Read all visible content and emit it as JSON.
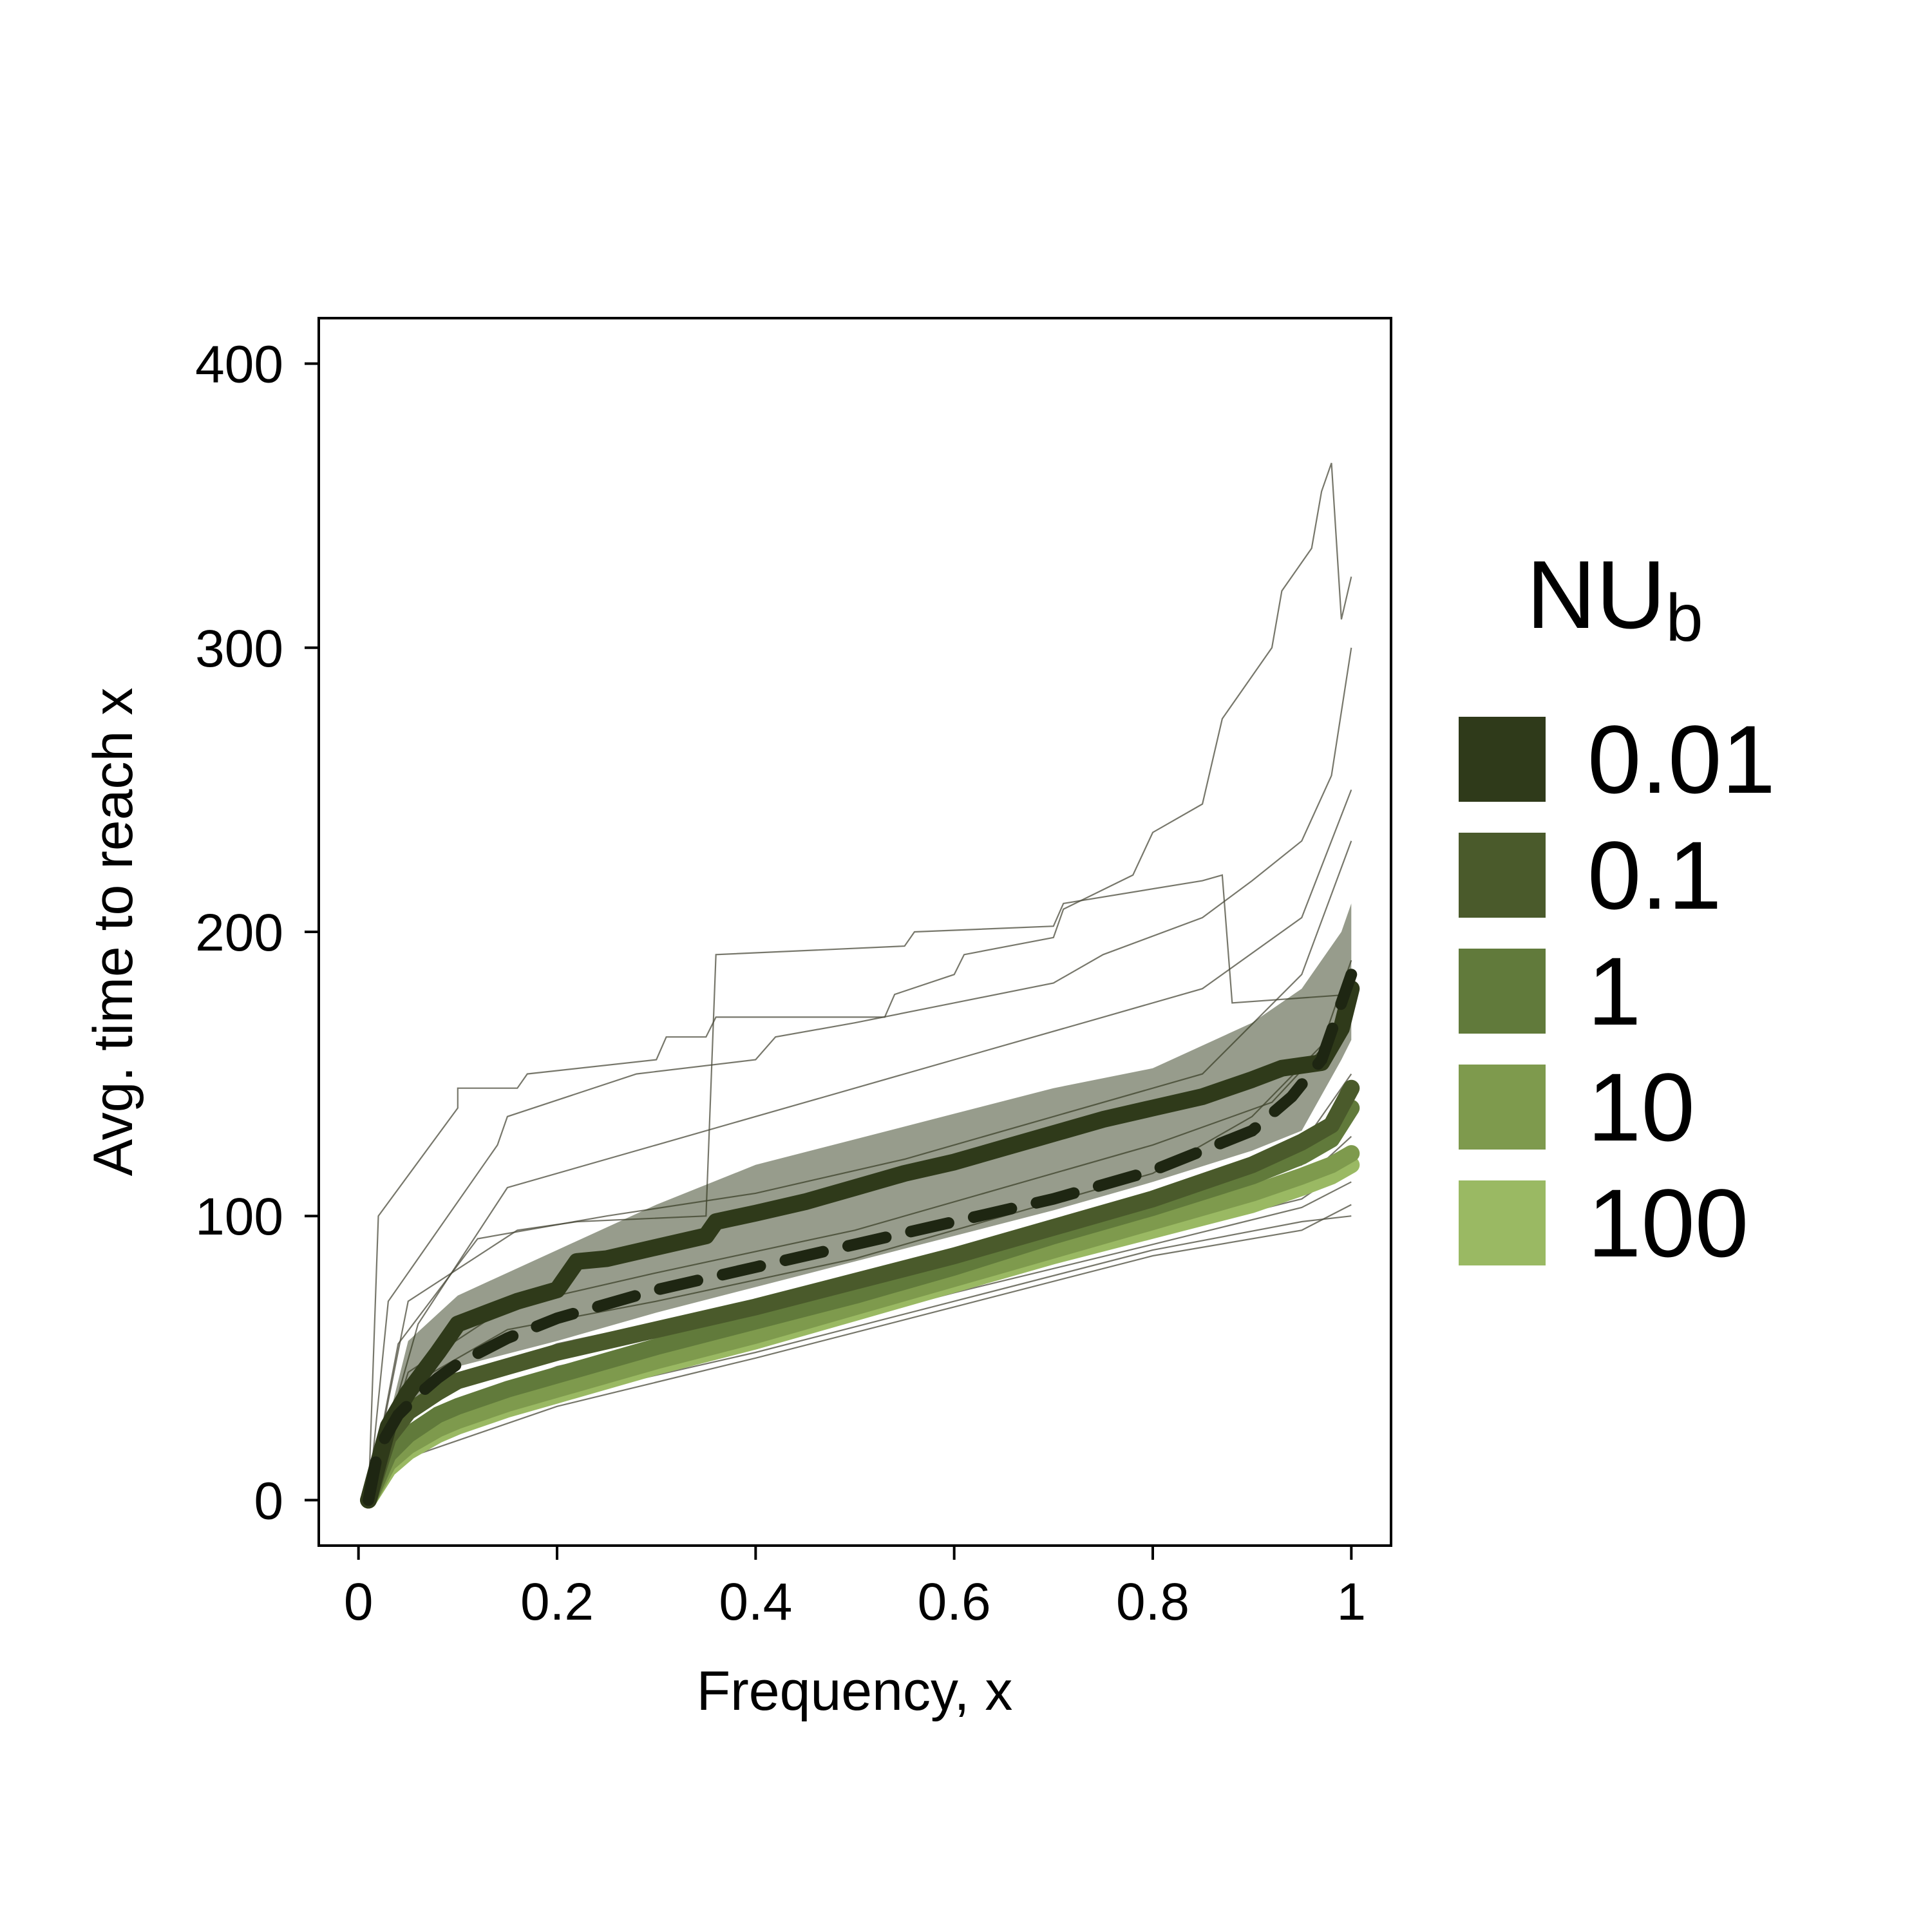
{
  "chart_data": {
    "type": "line",
    "xlabel": "Frequency, x",
    "ylabel": "Avg. time to reach x",
    "xlim": [
      -0.04,
      1.04
    ],
    "ylim": [
      -16,
      416
    ],
    "x_ticks": [
      "0",
      "0.2",
      "0.4",
      "0.6",
      "0.8",
      "1"
    ],
    "x_tick_values": [
      0,
      0.2,
      0.4,
      0.6,
      0.8,
      1
    ],
    "y_ticks": [
      "0",
      "100",
      "200",
      "300",
      "400"
    ],
    "y_tick_values": [
      0,
      100,
      200,
      300,
      400
    ],
    "grid": false,
    "legend": {
      "title_main": "NU",
      "title_sub": "b",
      "placement": "right",
      "entries": [
        "0.01",
        "0.1",
        "1",
        "10",
        "100"
      ]
    },
    "band": {
      "series": "0.01",
      "color": "#2f3a1a",
      "opacity": 0.5,
      "x": [
        0.01,
        0.05,
        0.1,
        0.2,
        0.3,
        0.4,
        0.5,
        0.6,
        0.7,
        0.8,
        0.9,
        0.95,
        0.99,
        1.0
      ],
      "lower": [
        0,
        30,
        47,
        56,
        66,
        75,
        84,
        93,
        102,
        112,
        123,
        130,
        155,
        162
      ],
      "upper": [
        0,
        56,
        72,
        88,
        104,
        118,
        127,
        136,
        145,
        152,
        168,
        180,
        200,
        210
      ]
    },
    "series": [
      {
        "name": "0.01",
        "color": "#2f3a1a",
        "x": [
          0.01,
          0.03,
          0.05,
          0.08,
          0.1,
          0.13,
          0.16,
          0.2,
          0.22,
          0.25,
          0.3,
          0.35,
          0.36,
          0.4,
          0.45,
          0.5,
          0.55,
          0.6,
          0.65,
          0.7,
          0.75,
          0.8,
          0.85,
          0.9,
          0.93,
          0.95,
          0.97,
          0.99,
          1.0
        ],
        "y": [
          0,
          26,
          38,
          52,
          62,
          66,
          70,
          74,
          84,
          85,
          89,
          93,
          98,
          101,
          105,
          110,
          115,
          119,
          124,
          129,
          134,
          138,
          142,
          148,
          152,
          153,
          154,
          166,
          180
        ]
      },
      {
        "name": "0.1",
        "color": "#4a5a2b",
        "x": [
          0.01,
          0.03,
          0.05,
          0.08,
          0.1,
          0.15,
          0.2,
          0.3,
          0.4,
          0.5,
          0.6,
          0.7,
          0.8,
          0.9,
          0.95,
          0.98,
          1.0
        ],
        "y": [
          0,
          22,
          31,
          38,
          42,
          47,
          52,
          60,
          68,
          77,
          86,
          96,
          106,
          118,
          126,
          132,
          145
        ]
      },
      {
        "name": "1",
        "color": "#617a3b",
        "x": [
          0.01,
          0.03,
          0.05,
          0.08,
          0.1,
          0.15,
          0.2,
          0.3,
          0.4,
          0.5,
          0.6,
          0.7,
          0.8,
          0.9,
          0.95,
          0.98,
          1.0
        ],
        "y": [
          0,
          16,
          23,
          30,
          33,
          39,
          44,
          54,
          63,
          72,
          82,
          93,
          103,
          114,
          121,
          127,
          138
        ]
      },
      {
        "name": "10",
        "color": "#7e9a4d",
        "x": [
          0.01,
          0.03,
          0.05,
          0.08,
          0.1,
          0.15,
          0.2,
          0.3,
          0.4,
          0.5,
          0.6,
          0.7,
          0.8,
          0.9,
          0.95,
          0.98,
          1.0
        ],
        "y": [
          0,
          13,
          19,
          25,
          28,
          34,
          39,
          49,
          58,
          68,
          78,
          88,
          98,
          108,
          114,
          118,
          122
        ]
      },
      {
        "name": "100",
        "color": "#9ab963",
        "x": [
          0.01,
          0.03,
          0.05,
          0.08,
          0.1,
          0.15,
          0.2,
          0.3,
          0.4,
          0.5,
          0.6,
          0.7,
          0.8,
          0.9,
          0.95,
          0.98,
          1.0
        ],
        "y": [
          0,
          11,
          17,
          23,
          26,
          32,
          37,
          47,
          56,
          66,
          76,
          86,
          95,
          104,
          110,
          114,
          118
        ]
      }
    ],
    "dashed": {
      "color": "#1e2612",
      "x": [
        0.01,
        0.02,
        0.04,
        0.06,
        0.08,
        0.1,
        0.15,
        0.2,
        0.3,
        0.4,
        0.5,
        0.6,
        0.7,
        0.8,
        0.9,
        0.94,
        0.97,
        0.99,
        1.0
      ],
      "y": [
        0,
        18,
        30,
        37,
        43,
        48,
        57,
        64,
        74,
        82,
        90,
        98,
        106,
        116,
        130,
        142,
        155,
        175,
        185
      ]
    },
    "traces": [
      {
        "x": [
          0.01,
          0.02,
          0.1,
          0.1,
          0.16,
          0.17,
          0.3,
          0.31,
          0.35,
          0.36,
          0.53,
          0.54,
          0.6,
          0.61,
          0.7,
          0.71,
          0.78,
          0.8,
          0.85,
          0.87,
          0.92,
          0.93,
          0.96,
          0.97,
          0.98,
          0.99,
          1.0
        ],
        "y": [
          0,
          100,
          138,
          145,
          145,
          150,
          155,
          163,
          163,
          170,
          170,
          178,
          185,
          192,
          198,
          208,
          220,
          235,
          245,
          275,
          300,
          320,
          335,
          355,
          365,
          310,
          325
        ]
      },
      {
        "x": [
          0.01,
          0.03,
          0.14,
          0.15,
          0.28,
          0.4,
          0.42,
          0.5,
          0.6,
          0.7,
          0.75,
          0.85,
          0.9,
          0.95,
          0.98,
          1.0
        ],
        "y": [
          0,
          70,
          125,
          135,
          150,
          155,
          163,
          168,
          175,
          182,
          192,
          205,
          218,
          232,
          255,
          300
        ]
      },
      {
        "x": [
          0.01,
          0.05,
          0.16,
          0.22,
          0.35,
          0.36,
          0.55,
          0.56,
          0.7,
          0.71,
          0.85,
          0.87,
          0.88,
          1.0
        ],
        "y": [
          0,
          70,
          95,
          98,
          100,
          192,
          195,
          200,
          202,
          210,
          218,
          220,
          175,
          178
        ]
      },
      {
        "x": [
          0.01,
          0.06,
          0.15,
          0.3,
          0.45,
          0.6,
          0.75,
          0.85,
          0.95,
          1.0
        ],
        "y": [
          0,
          62,
          110,
          125,
          140,
          155,
          170,
          180,
          205,
          250
        ]
      },
      {
        "x": [
          0.01,
          0.04,
          0.12,
          0.25,
          0.4,
          0.55,
          0.7,
          0.85,
          0.95,
          1.0
        ],
        "y": [
          0,
          55,
          92,
          100,
          108,
          120,
          135,
          150,
          185,
          232
        ]
      },
      {
        "x": [
          0.01,
          0.05,
          0.15,
          0.3,
          0.5,
          0.65,
          0.8,
          0.9,
          0.97,
          1.0
        ],
        "y": [
          0,
          40,
          60,
          70,
          85,
          100,
          115,
          135,
          160,
          190
        ]
      },
      {
        "x": [
          0.01,
          0.05,
          0.15,
          0.3,
          0.5,
          0.65,
          0.8,
          0.92,
          1.0
        ],
        "y": [
          0,
          45,
          68,
          80,
          95,
          110,
          125,
          140,
          170
        ]
      },
      {
        "x": [
          0.01,
          0.06,
          0.2,
          0.4,
          0.6,
          0.8,
          0.95,
          1.0
        ],
        "y": [
          0,
          35,
          55,
          70,
          85,
          102,
          125,
          150
        ]
      },
      {
        "x": [
          0.01,
          0.06,
          0.2,
          0.4,
          0.6,
          0.8,
          0.95,
          1.0
        ],
        "y": [
          0,
          28,
          47,
          62,
          80,
          98,
          112,
          128
        ]
      },
      {
        "x": [
          0.01,
          0.06,
          0.2,
          0.4,
          0.6,
          0.8,
          0.95,
          1.0
        ],
        "y": [
          0,
          25,
          42,
          58,
          76,
          93,
          106,
          118
        ]
      },
      {
        "x": [
          0.01,
          0.05,
          0.2,
          0.4,
          0.6,
          0.8,
          0.95,
          1.0
        ],
        "y": [
          0,
          20,
          38,
          55,
          73,
          90,
          103,
          112
        ]
      },
      {
        "x": [
          0.01,
          0.05,
          0.2,
          0.4,
          0.6,
          0.8,
          0.95,
          1.0
        ],
        "y": [
          0,
          18,
          36,
          52,
          70,
          88,
          98,
          100
        ]
      },
      {
        "x": [
          0.01,
          0.05,
          0.2,
          0.4,
          0.6,
          0.8,
          0.95,
          1.0
        ],
        "y": [
          0,
          15,
          33,
          50,
          68,
          86,
          95,
          104
        ]
      },
      {
        "x": [
          0.01,
          0.04,
          0.2,
          0.4,
          0.6,
          0.8,
          0.95,
          1.0
        ],
        "y": [
          0,
          32,
          52,
          67,
          84,
          102,
          118,
          140
        ]
      }
    ]
  }
}
